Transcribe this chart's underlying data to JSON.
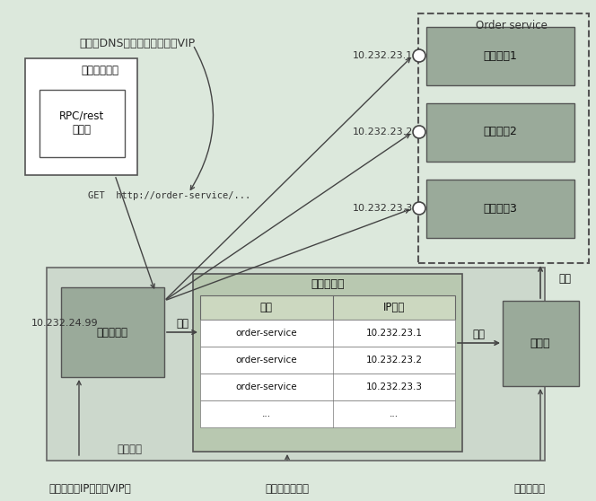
{
  "bg_color": "#dce8dc",
  "bottom_labels": [
    "服务的虚拟IP地址（VIP）",
    "服务端服务发现",
    "第三方注册"
  ],
  "top_annotation": "服务的DNS名称解析为服务的VIP",
  "get_text": "GET  http://order-service/...",
  "vip_label": "10.232.24.99",
  "ip1": "10.232.23.1",
  "ip2": "10.232.23.2",
  "ip3": "10.232.23.3",
  "order_service_label": "Order service",
  "instance_labels": [
    "服务实例1",
    "服务实例2",
    "服务实例3"
  ],
  "client_box_label": "服务的客户端",
  "client_inner_label": "RPC/rest\n客户端",
  "router_label": "平台路由器",
  "registry_label": "注册器",
  "table_title": "服务注册表",
  "table_headers": [
    "服务",
    "IP地址"
  ],
  "table_rows": [
    [
      "order-service",
      "10.232.23.1"
    ],
    [
      "order-service",
      "10.232.23.2"
    ],
    [
      "order-service",
      "10.232.23.3"
    ],
    [
      "...",
      "..."
    ]
  ],
  "query_label": "查询",
  "update_label": "更新",
  "observe_label": "观察",
  "deploy_label": "部署平台",
  "platform_box_color": "#ccd8cc",
  "router_box_color": "#9aaa9a",
  "registry_box_color": "#9aaa9a",
  "instance_box_color": "#9aaa9a",
  "table_bg_color": "#b8c8b8",
  "client_box_color": "#ffffff",
  "line_color": "#444444",
  "text_color": "#111111"
}
